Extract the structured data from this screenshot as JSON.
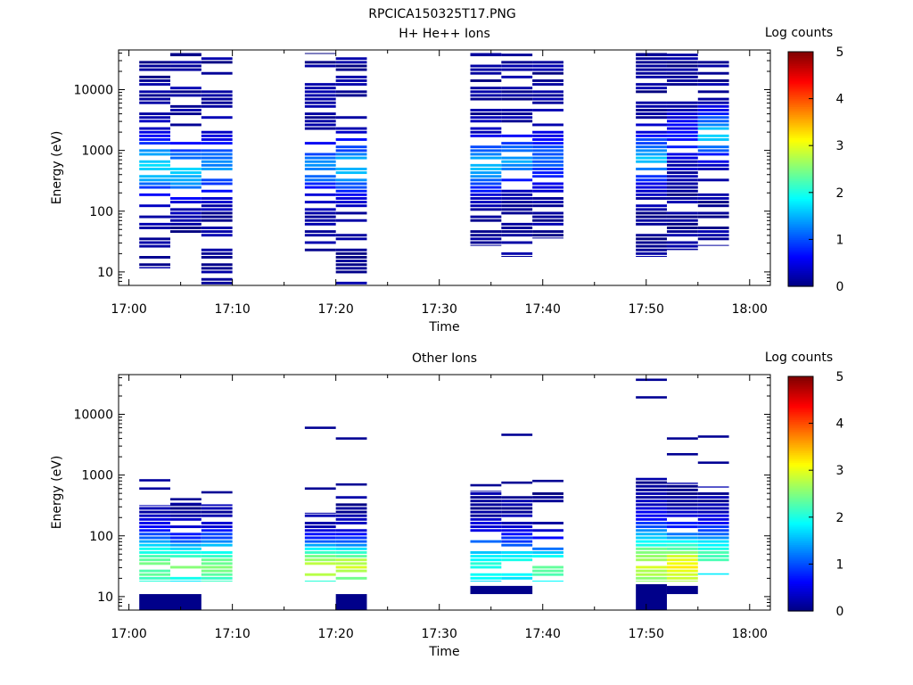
{
  "figure_title": "RPCICA150325T17.PNG",
  "chart_data": [
    {
      "type": "heatmap",
      "title": "H+ He++ Ions",
      "xlabel": "Time",
      "ylabel": "Energy (eV)",
      "xticks": [
        "17:00",
        "17:10",
        "17:20",
        "17:30",
        "17:40",
        "17:50",
        "18:00"
      ],
      "xlim": [
        "16:59",
        "18:02"
      ],
      "yscale": "log",
      "ylim": [
        6,
        45000
      ],
      "yticks": [
        10,
        100,
        1000,
        10000
      ],
      "ytick_labels": [
        "10",
        "100",
        "1000",
        "10000"
      ],
      "colorbar": {
        "label": "Log counts",
        "min": 0,
        "max": 5,
        "ticks": [
          "0",
          "1",
          "2",
          "3",
          "4",
          "5"
        ]
      },
      "bands": [
        {
          "t0": "17:01",
          "t1": "17:04",
          "emin": 11,
          "emax": 40000,
          "fill": 0.68,
          "peak_e": 550,
          "peak_v": 1.6,
          "width": 0.45
        },
        {
          "t0": "17:04",
          "t1": "17:07",
          "emin": 30,
          "emax": 40000,
          "fill": 0.62,
          "peak_e": 450,
          "peak_v": 1.5,
          "width": 0.4
        },
        {
          "t0": "17:07",
          "t1": "17:10",
          "emin": 6,
          "emax": 40000,
          "fill": 0.7,
          "peak_e": 550,
          "peak_v": 1.2,
          "width": 0.45
        },
        {
          "t0": "17:17",
          "t1": "17:20",
          "emin": 17,
          "emax": 40000,
          "fill": 0.7,
          "peak_e": 500,
          "peak_v": 1.2,
          "width": 0.4
        },
        {
          "t0": "17:20",
          "t1": "17:23",
          "emin": 6,
          "emax": 40000,
          "fill": 0.72,
          "peak_e": 500,
          "peak_v": 1.4,
          "width": 0.45
        },
        {
          "t0": "17:33",
          "t1": "17:36",
          "emin": 27,
          "emax": 40000,
          "fill": 0.7,
          "peak_e": 550,
          "peak_v": 1.5,
          "width": 0.4
        },
        {
          "t0": "17:36",
          "t1": "17:39",
          "emin": 17,
          "emax": 40000,
          "fill": 0.62,
          "peak_e": 700,
          "peak_v": 1.3,
          "width": 0.35
        },
        {
          "t0": "17:39",
          "t1": "17:42",
          "emin": 36,
          "emax": 40000,
          "fill": 0.72,
          "peak_e": 700,
          "peak_v": 1.0,
          "width": 0.4
        },
        {
          "t0": "17:49",
          "t1": "17:52",
          "emin": 17,
          "emax": 40000,
          "fill": 0.72,
          "peak_e": 700,
          "peak_v": 1.4,
          "width": 0.4
        },
        {
          "t0": "17:52",
          "t1": "17:55",
          "emin": 22,
          "emax": 40000,
          "fill": 0.82,
          "peak_e": 1500,
          "peak_v": 0.6,
          "width": 0.4
        },
        {
          "t0": "17:55",
          "t1": "17:58",
          "emin": 27,
          "emax": 35000,
          "fill": 0.72,
          "peak_e": 1800,
          "peak_v": 1.5,
          "width": 0.35
        }
      ]
    },
    {
      "type": "heatmap",
      "title": "Other Ions",
      "xlabel": "Time",
      "ylabel": "Energy (eV)",
      "xticks": [
        "17:00",
        "17:10",
        "17:20",
        "17:30",
        "17:40",
        "17:50",
        "18:00"
      ],
      "xlim": [
        "16:59",
        "18:02"
      ],
      "yscale": "log",
      "ylim": [
        6,
        45000
      ],
      "yticks": [
        10,
        100,
        1000,
        10000
      ],
      "ytick_labels": [
        "10",
        "100",
        "1000",
        "10000"
      ],
      "colorbar": {
        "label": "Log counts",
        "min": 0,
        "max": 5,
        "ticks": [
          "0",
          "1",
          "2",
          "3",
          "4",
          "5"
        ]
      },
      "bands": [
        {
          "t0": "17:01",
          "t1": "17:04",
          "emin": 17,
          "emax": 320,
          "fill": 0.95,
          "peak_e": 30,
          "peak_v": 2.3,
          "width": 0.55
        },
        {
          "t0": "17:04",
          "t1": "17:07",
          "emin": 17,
          "emax": 350,
          "fill": 0.78,
          "peak_e": 30,
          "peak_v": 2.3,
          "width": 0.45
        },
        {
          "t0": "17:07",
          "t1": "17:10",
          "emin": 17,
          "emax": 330,
          "fill": 0.9,
          "peak_e": 30,
          "peak_v": 2.4,
          "width": 0.5
        },
        {
          "t0": "17:17",
          "t1": "17:20",
          "emin": 17,
          "emax": 240,
          "fill": 0.82,
          "peak_e": 30,
          "peak_v": 2.8,
          "width": 0.4
        },
        {
          "t0": "17:20",
          "t1": "17:23",
          "emin": 17,
          "emax": 450,
          "fill": 0.78,
          "peak_e": 30,
          "peak_v": 2.8,
          "width": 0.4
        },
        {
          "t0": "17:33",
          "t1": "17:36",
          "emin": 17,
          "emax": 550,
          "fill": 0.82,
          "peak_e": 30,
          "peak_v": 1.9,
          "width": 0.5
        },
        {
          "t0": "17:36",
          "t1": "17:39",
          "emin": 17,
          "emax": 450,
          "fill": 0.72,
          "peak_e": 30,
          "peak_v": 2.0,
          "width": 0.45
        },
        {
          "t0": "17:39",
          "t1": "17:42",
          "emin": 17,
          "emax": 550,
          "fill": 0.75,
          "peak_e": 28,
          "peak_v": 2.3,
          "width": 0.4
        },
        {
          "t0": "17:49",
          "t1": "17:52",
          "emin": 17,
          "emax": 900,
          "fill": 0.98,
          "peak_e": 30,
          "peak_v": 2.7,
          "width": 0.65
        },
        {
          "t0": "17:52",
          "t1": "17:55",
          "emin": 17,
          "emax": 750,
          "fill": 0.88,
          "peak_e": 30,
          "peak_v": 3.0,
          "width": 0.55
        },
        {
          "t0": "17:55",
          "t1": "17:58",
          "emin": 22,
          "emax": 650,
          "fill": 0.85,
          "peak_e": 40,
          "peak_v": 2.2,
          "width": 0.5
        }
      ],
      "isolated_lines": [
        {
          "t0": "17:01",
          "t1": "17:04",
          "e": 820,
          "v": 0.15
        },
        {
          "t0": "17:01",
          "t1": "17:04",
          "e": 600,
          "v": 0.15
        },
        {
          "t0": "17:04",
          "t1": "17:07",
          "e": 400,
          "v": 0.1
        },
        {
          "t0": "17:07",
          "t1": "17:10",
          "e": 520,
          "v": 0.1
        },
        {
          "t0": "17:17",
          "t1": "17:20",
          "e": 6000,
          "v": 0.1
        },
        {
          "t0": "17:17",
          "t1": "17:20",
          "e": 600,
          "v": 0.1
        },
        {
          "t0": "17:20",
          "t1": "17:23",
          "e": 4000,
          "v": 0.1
        },
        {
          "t0": "17:20",
          "t1": "17:23",
          "e": 700,
          "v": 0.1
        },
        {
          "t0": "17:33",
          "t1": "17:36",
          "e": 680,
          "v": 0.1
        },
        {
          "t0": "17:36",
          "t1": "17:39",
          "e": 4600,
          "v": 0.1
        },
        {
          "t0": "17:36",
          "t1": "17:39",
          "e": 750,
          "v": 0.1
        },
        {
          "t0": "17:39",
          "t1": "17:42",
          "e": 800,
          "v": 0.1
        },
        {
          "t0": "17:49",
          "t1": "17:52",
          "e": 37000,
          "v": 0.1
        },
        {
          "t0": "17:49",
          "t1": "17:52",
          "e": 19000,
          "v": 0.1
        },
        {
          "t0": "17:52",
          "t1": "17:55",
          "e": 4000,
          "v": 0.1
        },
        {
          "t0": "17:52",
          "t1": "17:55",
          "e": 2200,
          "v": 0.1
        },
        {
          "t0": "17:55",
          "t1": "17:58",
          "e": 4300,
          "v": 0.1
        },
        {
          "t0": "17:55",
          "t1": "17:58",
          "e": 1600,
          "v": 0.1
        }
      ],
      "low_energy_blocks": [
        {
          "t0": "17:01",
          "t1": "17:07",
          "emin": 6,
          "emax": 11,
          "v": 0.05
        },
        {
          "t0": "17:20",
          "t1": "17:23",
          "emin": 6,
          "emax": 11,
          "v": 0.05
        },
        {
          "t0": "17:33",
          "t1": "17:39",
          "emin": 11,
          "emax": 15,
          "v": 0.05
        },
        {
          "t0": "17:49",
          "t1": "17:52",
          "emin": 6,
          "emax": 16,
          "v": 0.05
        },
        {
          "t0": "17:52",
          "t1": "17:55",
          "emin": 11,
          "emax": 15,
          "v": 0.05
        }
      ]
    }
  ]
}
